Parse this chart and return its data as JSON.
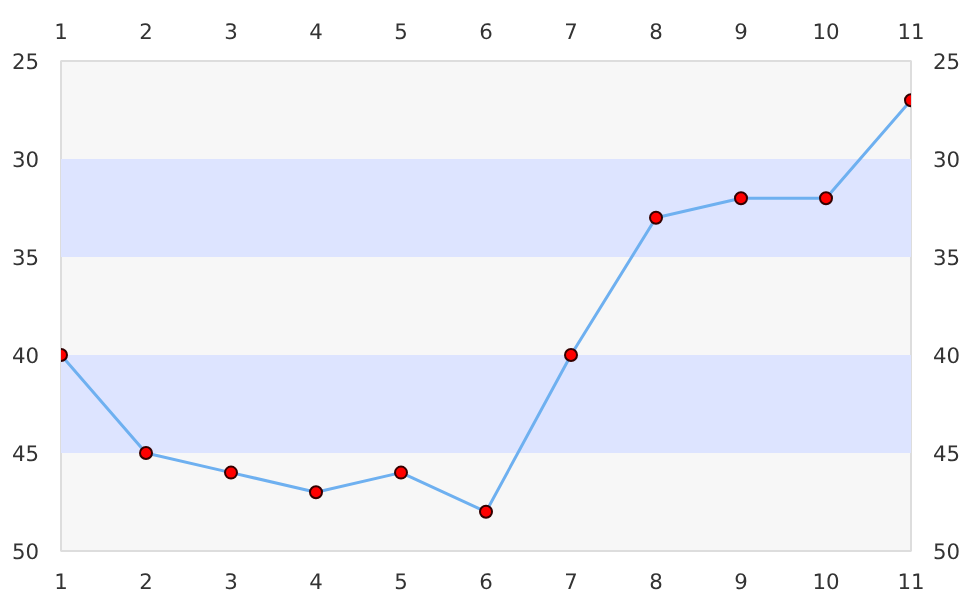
{
  "chart_data": {
    "type": "line",
    "x": [
      1,
      2,
      3,
      4,
      5,
      6,
      7,
      8,
      9,
      10,
      11
    ],
    "series": [
      {
        "color": "#6eb0f0",
        "values": [
          40,
          45,
          46,
          47,
          46,
          48,
          40,
          33,
          32,
          32,
          27
        ]
      }
    ],
    "xlim": [
      1,
      11
    ],
    "xticks": [
      1,
      2,
      3,
      4,
      5,
      6,
      7,
      8,
      9,
      10,
      11
    ],
    "x2lim": [
      1,
      11
    ],
    "x2ticks": [
      1,
      2,
      3,
      4,
      5,
      6,
      7,
      8,
      9,
      10,
      11
    ],
    "ylim": [
      50,
      25
    ],
    "yticks": [
      25,
      30,
      35,
      40,
      45,
      50
    ],
    "y2lim": [
      50,
      25
    ],
    "y2ticks": [
      25,
      30,
      35,
      40,
      45,
      50
    ],
    "bands": [
      {
        "axis": "y",
        "from": 30,
        "to": 35,
        "color": "#dde4ff"
      },
      {
        "axis": "y",
        "from": 40,
        "to": 45,
        "color": "#dde4ff"
      }
    ],
    "marker": "circle",
    "line_style": "solid",
    "grid": false
  }
}
